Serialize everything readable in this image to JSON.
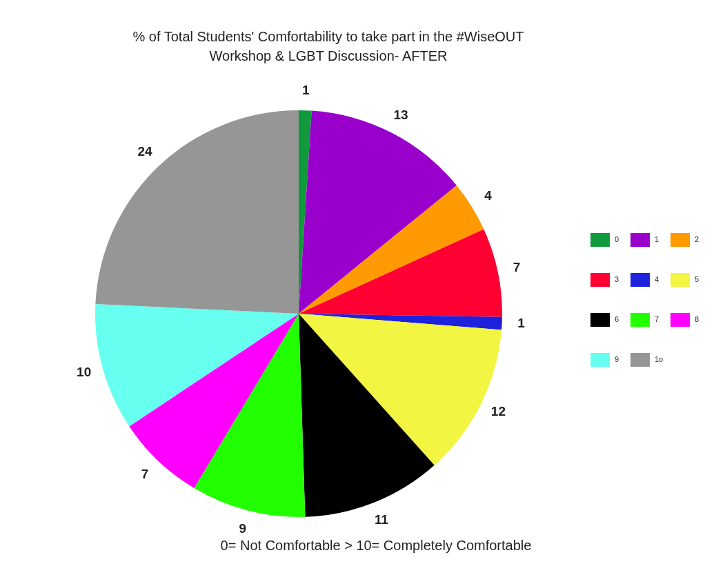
{
  "chart_data": {
    "type": "pie",
    "title": "% of Total Students' Comfortability to take part in the #WiseOUT\nWorkshop & LGBT Discussion- AFTER",
    "categories": [
      "0",
      "1",
      "2",
      "3",
      "4",
      "5",
      "6",
      "7",
      "8",
      "9",
      "1o"
    ],
    "values": [
      1,
      13,
      4,
      7,
      1,
      12,
      11,
      9,
      7,
      10,
      24
    ],
    "colors": [
      "#109a3b",
      "#9900cc",
      "#ff9900",
      "#ff0033",
      "#1f22dd",
      "#f2f542",
      "#000000",
      "#22ff00",
      "#ff00ff",
      "#66fff0",
      "#969696"
    ],
    "data_labels": true,
    "legend": "right",
    "annotations": [
      "0= Not Comfortable > 10= Completely Comfortable"
    ]
  }
}
